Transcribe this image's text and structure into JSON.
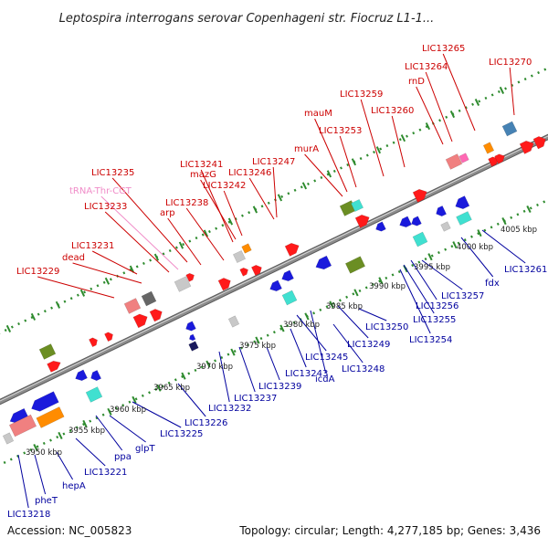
{
  "title": "Leptospira interrogans serovar Copenhageni str. Fiocruz L1-1...",
  "footer": {
    "accession": "Accession: NC_005823",
    "summary": "Topology: circular; Length: 4,277,185 bp; Genes: 3,436"
  },
  "colors": {
    "forward_strand": "#ff1a1a",
    "reverse_strand": "#1a1adc",
    "forward_label": "#cc0000",
    "reverse_label": "#00009e",
    "trna_label": "#f08cc8",
    "tick_dots": "#2e8b2e",
    "backbone": "#8c8c8c"
  },
  "forward_labels": [
    "LIC13229",
    "dead",
    "LIC13231",
    "LIC13233",
    "tRNA-Thr-CGT",
    "LIC13235",
    "arp",
    "LIC13238",
    "LIC13241",
    "mazG",
    "LIC13242",
    "LIC13246",
    "LIC13247",
    "murA",
    "mauM",
    "LIC13253",
    "LIC13259",
    "LIC13260",
    "rnD",
    "LIC13264",
    "LIC13265",
    "LIC13270"
  ],
  "reverse_labels": [
    "LIC13218",
    "pheT",
    "hepA",
    "LIC13221",
    "ppa",
    "glpT",
    "LIC13225",
    "LIC13226",
    "LIC13232",
    "LIC13237",
    "LIC13239",
    "LIC13243",
    "LIC13245",
    "icdA",
    "LIC13248",
    "LIC13249",
    "LIC13250",
    "LIC13254",
    "LIC13255",
    "LIC13256",
    "LIC13257",
    "fdx",
    "LIC13261"
  ],
  "ticks": [
    "3950 kbp",
    "3955 kbp",
    "3960 kbp",
    "3965 kbp",
    "3970 kbp",
    "3975 kbp",
    "3980 kbp",
    "3985 kbp",
    "3990 kbp",
    "3995 kbp",
    "4000 kbp",
    "4005 kbp"
  ]
}
